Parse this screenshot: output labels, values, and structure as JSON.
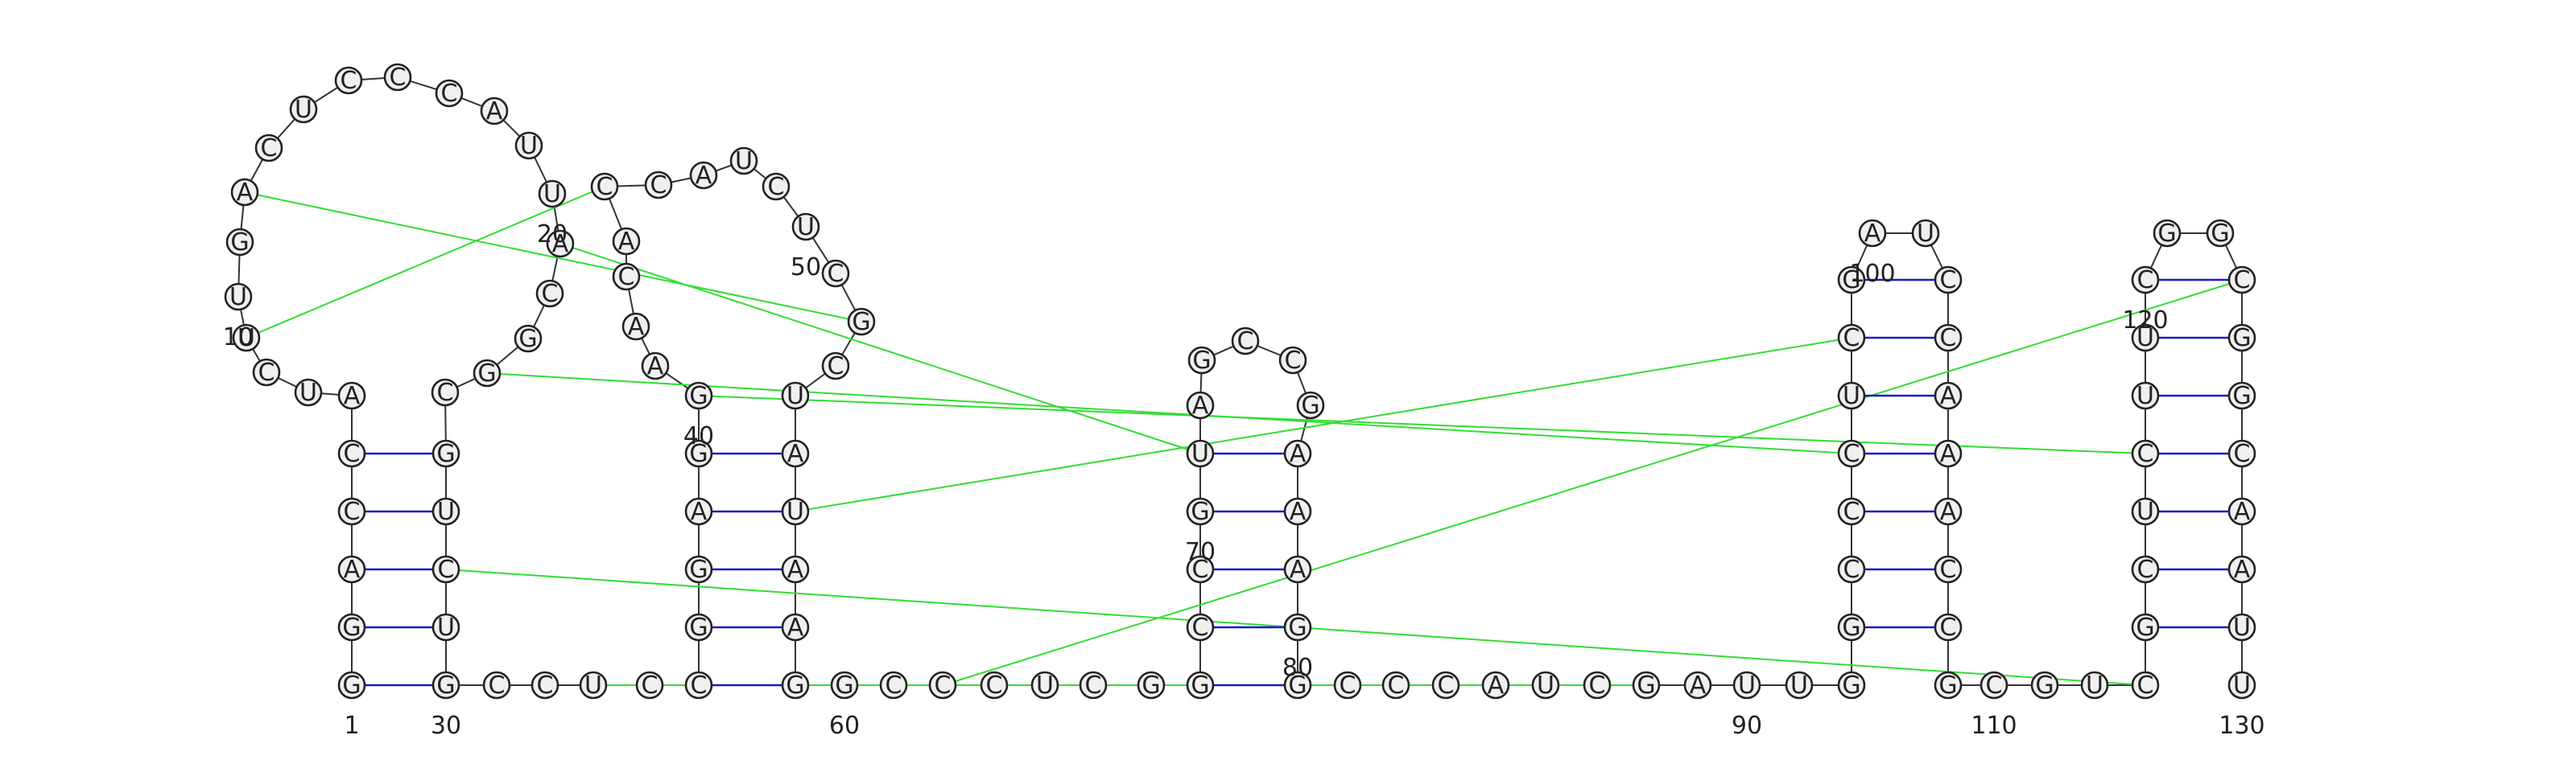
{
  "structure": {
    "sequence": "GGACCAUCUUGACUCCCAUUACGGCGUCUGCCUCCGGAGGAACACCAUCUCGCUAUAAGGCCCUCGGCCGUAGCCGAAAGGCCCAUCGAUUGGCCCUCGAUCCAAACCGCGUCGCUCUUCGGCGGCAAUUC",
    "position_labels": [
      "1",
      "10",
      "20",
      "30",
      "40",
      "50",
      "60",
      "70",
      "80",
      "90",
      "100",
      "110",
      "120",
      "130"
    ]
  },
  "colors": {
    "backbone": "#333333",
    "canonical_pair": "#1a1acc",
    "wobble_pair": "#1a1acc",
    "noncanonical_interaction": "#33dd33",
    "nucleotide_fill": "#f0f0f0",
    "nucleotide_stroke": "#222222"
  }
}
